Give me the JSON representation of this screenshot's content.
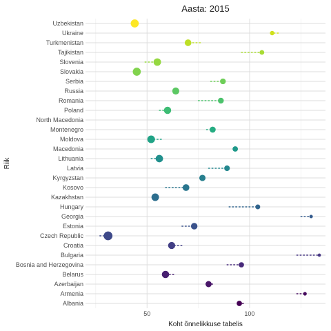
{
  "chart_data": {
    "type": "scatter",
    "title": "Aasta: 2015",
    "xlabel": "Koht õnnelikkuse tabelis",
    "ylabel": "Riik",
    "xlim": [
      20,
      137
    ],
    "x_ticks": [
      50,
      100
    ],
    "grid": true,
    "legend": "none",
    "categories": [
      "Albania",
      "Armenia",
      "Azerbaijan",
      "Belarus",
      "Bosnia and Herzegovina",
      "Bulgaria",
      "Croatia",
      "Czech Republic",
      "Estonia",
      "Georgia",
      "Hungary",
      "Kazakhstan",
      "Kosovo",
      "Kyrgyzstan",
      "Latvia",
      "Lithuania",
      "Macedonia",
      "Moldova",
      "Montenegro",
      "North Macedonia",
      "Poland",
      "Romania",
      "Russia",
      "Serbia",
      "Slovakia",
      "Slovenia",
      "Tajikistan",
      "Turkmenistan",
      "Ukraine",
      "Uzbekistan"
    ],
    "points": [
      {
        "country": "Albania",
        "rank": 95,
        "trail_from": 97,
        "color": "#440154"
      },
      {
        "country": "Armenia",
        "rank": 127,
        "trail_from": 123,
        "color": "#460b5e"
      },
      {
        "country": "Azerbaijan",
        "rank": 80,
        "trail_from": 82,
        "color": "#481668"
      },
      {
        "country": "Belarus",
        "rank": 59,
        "trail_from": 63,
        "color": "#482071"
      },
      {
        "country": "Bosnia and Herzegovina",
        "rank": 96,
        "trail_from": 89,
        "color": "#472a7a"
      },
      {
        "country": "Bulgaria",
        "rank": 134,
        "trail_from": 123,
        "color": "#453581"
      },
      {
        "country": "Croatia",
        "rank": 62,
        "trail_from": 67,
        "color": "#423f85"
      },
      {
        "country": "Czech Republic",
        "rank": 31,
        "trail_from": 27,
        "color": "#3e4989"
      },
      {
        "country": "Estonia",
        "rank": 73,
        "trail_from": 67,
        "color": "#3a528b"
      },
      {
        "country": "Georgia",
        "rank": 130,
        "trail_from": 125,
        "color": "#355b8d"
      },
      {
        "country": "Hungary",
        "rank": 104,
        "trail_from": 90,
        "color": "#31648d"
      },
      {
        "country": "Kazakhstan",
        "rank": 54,
        "trail_from": 54,
        "color": "#2d6e8e"
      },
      {
        "country": "Kosovo",
        "rank": 69,
        "trail_from": 59,
        "color": "#2a768e"
      },
      {
        "country": "Kyrgyzstan",
        "rank": 77,
        "trail_from": 77,
        "color": "#277f8e"
      },
      {
        "country": "Latvia",
        "rank": 89,
        "trail_from": 80,
        "color": "#24878e"
      },
      {
        "country": "Lithuania",
        "rank": 56,
        "trail_from": 52,
        "color": "#21908d"
      },
      {
        "country": "Macedonia",
        "rank": 93,
        "trail_from": 93,
        "color": "#1f998a"
      },
      {
        "country": "Moldova",
        "rank": 52,
        "trail_from": 57,
        "color": "#20a386"
      },
      {
        "country": "Montenegro",
        "rank": 82,
        "trail_from": 79,
        "color": "#26ac82"
      },
      {
        "country": "North Macedonia",
        "rank": null,
        "trail_from": null,
        "color": "#31b57b"
      },
      {
        "country": "Poland",
        "rank": 60,
        "trail_from": 56,
        "color": "#3dbc74"
      },
      {
        "country": "Romania",
        "rank": 86,
        "trail_from": 75,
        "color": "#4cc26c"
      },
      {
        "country": "Russia",
        "rank": 64,
        "trail_from": 64,
        "color": "#5cc863"
      },
      {
        "country": "Serbia",
        "rank": 87,
        "trail_from": 81,
        "color": "#6ece58"
      },
      {
        "country": "Slovakia",
        "rank": 45,
        "trail_from": 45,
        "color": "#81d34d"
      },
      {
        "country": "Slovenia",
        "rank": 55,
        "trail_from": 49,
        "color": "#95d840"
      },
      {
        "country": "Tajikistan",
        "rank": 106,
        "trail_from": 96,
        "color": "#a8db34"
      },
      {
        "country": "Turkmenistan",
        "rank": 70,
        "trail_from": 76,
        "color": "#bddf26"
      },
      {
        "country": "Ukraine",
        "rank": 111,
        "trail_from": 114,
        "color": "#d0e11c"
      },
      {
        "country": "Uzbekistan",
        "rank": 44,
        "trail_from": 44,
        "color": "#fde725"
      }
    ]
  }
}
